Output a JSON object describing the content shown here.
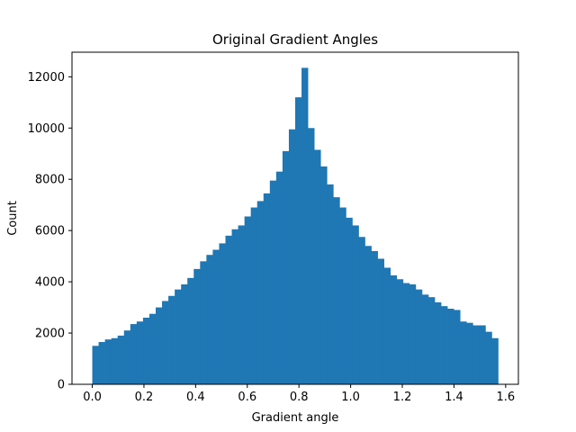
{
  "chart_data": {
    "type": "bar",
    "title": "Original Gradient Angles",
    "xlabel": "Gradient angle",
    "ylabel": "Count",
    "xlim": [
      -0.0785,
      1.6493
    ],
    "ylim": [
      0,
      12960
    ],
    "x_ticks": [
      0.0,
      0.2,
      0.4,
      0.6,
      0.8,
      1.0,
      1.2,
      1.4,
      1.6
    ],
    "x_tick_labels": [
      "0.0",
      "0.2",
      "0.4",
      "0.6",
      "0.8",
      "1.0",
      "1.2",
      "1.4",
      "1.6"
    ],
    "y_ticks": [
      0,
      2000,
      4000,
      6000,
      8000,
      10000,
      12000
    ],
    "y_tick_labels": [
      "0",
      "2000",
      "4000",
      "6000",
      "8000",
      "10000",
      "12000"
    ],
    "bar_color": "#1f77b4",
    "grid": false,
    "bin_start": 0.0,
    "bin_end": 1.5708,
    "bin_count": 64,
    "values": [
      1500,
      1650,
      1750,
      1800,
      1900,
      2100,
      2350,
      2450,
      2600,
      2750,
      3000,
      3250,
      3450,
      3700,
      3900,
      4150,
      4500,
      4800,
      5050,
      5250,
      5500,
      5800,
      6050,
      6200,
      6550,
      6900,
      7150,
      7450,
      7950,
      8300,
      9100,
      9950,
      11200,
      12350,
      10000,
      9150,
      8500,
      7800,
      7300,
      6900,
      6500,
      6200,
      5750,
      5400,
      5200,
      4900,
      4550,
      4250,
      4100,
      3950,
      3900,
      3700,
      3500,
      3400,
      3200,
      3050,
      2950,
      2900,
      2450,
      2400,
      2300,
      2300,
      2050,
      1800
    ]
  }
}
